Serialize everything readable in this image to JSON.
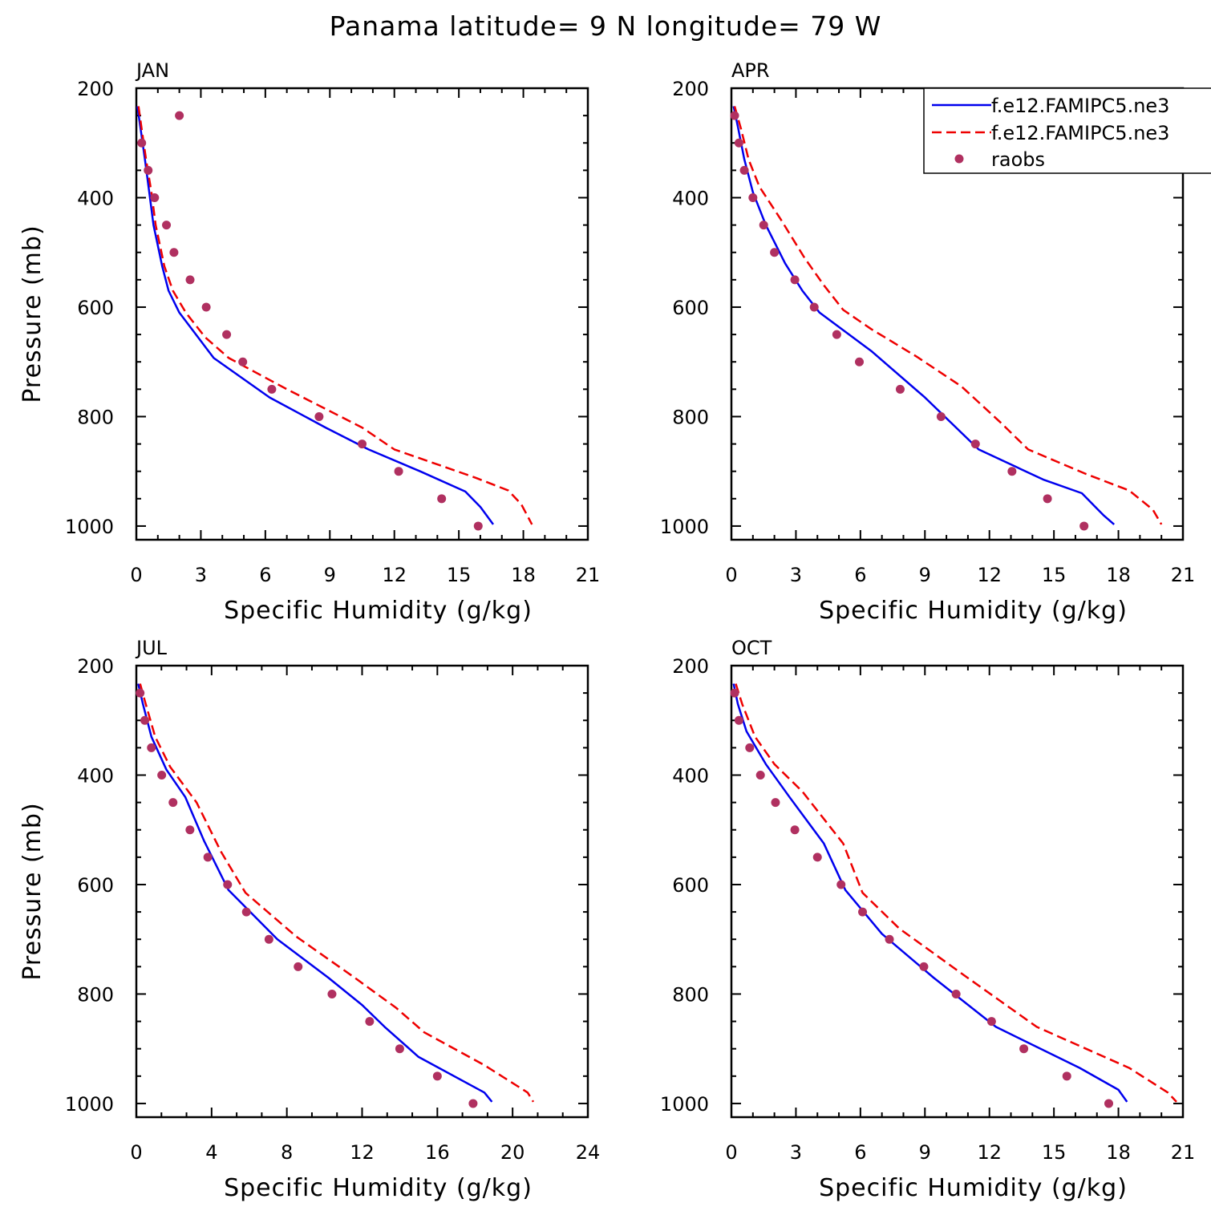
{
  "figure_title": "Panama  latitude= 9 N longitude= 79 W",
  "colors": {
    "model_1": "#0000ee",
    "model_2": "#ee0000",
    "raobs": "#b03060"
  },
  "legend": {
    "placement": "top-right of APR panel",
    "entries": [
      {
        "label": "f.e12.FAMIPC5.ne3",
        "style": "solid",
        "color": "#0000ee"
      },
      {
        "label": "f.e12.FAMIPC5.ne3",
        "style": "dashed",
        "color": "#ee0000"
      },
      {
        "label": "raobs",
        "style": "marker",
        "color": "#b03060"
      }
    ]
  },
  "chart_data": [
    {
      "type": "line",
      "title": "JAN",
      "xlabel": "Specific Humidity (g/kg)",
      "ylabel": "Pressure (mb)",
      "xlim": [
        0,
        21
      ],
      "xticks": [
        0,
        3,
        6,
        9,
        12,
        15,
        18,
        21
      ],
      "ylim": [
        200,
        1025
      ],
      "yticks": [
        200,
        400,
        600,
        800,
        1000
      ],
      "y_reversed": true,
      "series": [
        {
          "name": "f.e12.FAMIPC5.ne3",
          "style": "solid",
          "x": [
            0.05,
            0.2,
            0.4,
            0.6,
            0.8,
            1.2,
            1.5,
            2.0,
            3.6,
            6.2,
            8.8,
            10.8,
            13.2,
            15.3,
            16.0,
            16.6
          ],
          "y": [
            233,
            275,
            330,
            390,
            450,
            525,
            570,
            610,
            693,
            765,
            820,
            860,
            900,
            937,
            965,
            997
          ]
        },
        {
          "name": "f.e12.FAMIPC5.ne3",
          "style": "dashed",
          "x": [
            0.1,
            0.25,
            0.45,
            0.7,
            0.9,
            1.3,
            1.7,
            2.3,
            3.2,
            4.3,
            7.0,
            10.5,
            12.0,
            14.2,
            15.8,
            17.3,
            17.9,
            18.4
          ],
          "y": [
            233,
            275,
            330,
            390,
            450,
            525,
            570,
            610,
            655,
            693,
            750,
            820,
            860,
            890,
            912,
            935,
            960,
            997
          ]
        },
        {
          "name": "raobs",
          "style": "marker",
          "x": [
            2.0,
            0.25,
            0.55,
            0.85,
            1.4,
            1.75,
            2.5,
            3.25,
            4.2,
            4.95,
            6.3,
            8.5,
            10.5,
            12.2,
            14.2,
            15.9
          ],
          "y": [
            250,
            300,
            350,
            400,
            450,
            500,
            550,
            600,
            650,
            700,
            750,
            800,
            850,
            900,
            950,
            1000
          ]
        }
      ]
    },
    {
      "type": "line",
      "title": "APR",
      "xlabel": "Specific Humidity (g/kg)",
      "ylabel": "",
      "xlim": [
        0,
        21
      ],
      "xticks": [
        0,
        3,
        6,
        9,
        12,
        15,
        18,
        21
      ],
      "ylim": [
        200,
        1025
      ],
      "yticks": [
        200,
        400,
        600,
        800,
        1000
      ],
      "y_reversed": true,
      "series": [
        {
          "name": "f.e12.FAMIPC5.ne3",
          "style": "solid",
          "x": [
            0.1,
            0.3,
            0.6,
            1.0,
            1.6,
            2.5,
            3.3,
            4.1,
            6.5,
            9.0,
            11.5,
            14.5,
            16.3,
            17.3,
            17.8
          ],
          "y": [
            233,
            270,
            330,
            390,
            450,
            520,
            570,
            610,
            680,
            765,
            860,
            915,
            940,
            980,
            997
          ]
        },
        {
          "name": "f.e12.FAMIPC5.ne3",
          "style": "dashed",
          "x": [
            0.15,
            0.45,
            0.8,
            1.3,
            2.3,
            3.4,
            4.3,
            5.2,
            6.5,
            8.6,
            10.7,
            12.5,
            13.8,
            16.5,
            18.5,
            19.6,
            20.0
          ],
          "y": [
            233,
            275,
            330,
            380,
            440,
            510,
            560,
            605,
            640,
            690,
            745,
            810,
            860,
            905,
            935,
            970,
            997
          ]
        },
        {
          "name": "raobs",
          "style": "marker",
          "x": [
            0.15,
            0.35,
            0.6,
            1.0,
            1.5,
            2.0,
            2.95,
            3.85,
            4.9,
            5.95,
            7.85,
            9.75,
            11.35,
            13.05,
            14.7,
            16.4
          ],
          "y": [
            250,
            300,
            350,
            400,
            450,
            500,
            550,
            600,
            650,
            700,
            750,
            800,
            850,
            900,
            950,
            1000
          ]
        }
      ]
    },
    {
      "type": "line",
      "title": "JUL",
      "xlabel": "Specific Humidity (g/kg)",
      "ylabel": "Pressure (mb)",
      "xlim": [
        0,
        24
      ],
      "xticks": [
        0,
        4,
        8,
        12,
        16,
        20,
        24
      ],
      "ylim": [
        200,
        1025
      ],
      "yticks": [
        200,
        400,
        600,
        800,
        1000
      ],
      "y_reversed": true,
      "series": [
        {
          "name": "f.e12.FAMIPC5.ne3",
          "style": "solid",
          "x": [
            0.1,
            0.35,
            0.8,
            1.6,
            2.6,
            3.6,
            4.9,
            7.5,
            10.2,
            12.0,
            13.2,
            15.0,
            18.5,
            18.9
          ],
          "y": [
            233,
            270,
            330,
            390,
            440,
            520,
            610,
            700,
            770,
            820,
            860,
            915,
            980,
            997
          ]
        },
        {
          "name": "f.e12.FAMIPC5.ne3",
          "style": "dashed",
          "x": [
            0.2,
            0.5,
            1.0,
            1.8,
            3.2,
            4.5,
            5.8,
            8.5,
            11.6,
            13.8,
            15.3,
            18.5,
            20.8,
            21.1
          ],
          "y": [
            233,
            270,
            330,
            385,
            450,
            540,
            615,
            695,
            770,
            825,
            870,
            930,
            980,
            997
          ]
        },
        {
          "name": "raobs",
          "style": "marker",
          "x": [
            0.2,
            0.45,
            0.8,
            1.35,
            1.95,
            2.85,
            3.8,
            4.85,
            5.85,
            7.05,
            8.6,
            10.4,
            12.4,
            14.0,
            16.0,
            17.9
          ],
          "y": [
            250,
            300,
            350,
            400,
            450,
            500,
            550,
            600,
            650,
            700,
            750,
            800,
            850,
            900,
            950,
            1000
          ]
        }
      ]
    },
    {
      "type": "line",
      "title": "OCT",
      "xlabel": "Specific Humidity (g/kg)",
      "ylabel": "",
      "xlim": [
        0,
        21
      ],
      "xticks": [
        0,
        3,
        6,
        9,
        12,
        15,
        18,
        21
      ],
      "ylim": [
        200,
        1025
      ],
      "yticks": [
        200,
        400,
        600,
        800,
        1000
      ],
      "y_reversed": true,
      "series": [
        {
          "name": "f.e12.FAMIPC5.ne3",
          "style": "solid",
          "x": [
            0.1,
            0.3,
            0.7,
            1.6,
            2.7,
            4.3,
            5.3,
            7.0,
            9.4,
            12.3,
            16.2,
            18.0,
            18.4
          ],
          "y": [
            233,
            270,
            320,
            380,
            440,
            525,
            610,
            690,
            770,
            860,
            935,
            975,
            997
          ]
        },
        {
          "name": "f.e12.FAMIPC5.ne3",
          "style": "dashed",
          "x": [
            0.2,
            0.5,
            1.1,
            2.0,
            3.3,
            5.2,
            6.1,
            7.8,
            10.8,
            14.2,
            18.5,
            20.3,
            20.7
          ],
          "y": [
            233,
            270,
            330,
            380,
            430,
            525,
            615,
            680,
            765,
            860,
            935,
            980,
            997
          ]
        },
        {
          "name": "raobs",
          "style": "marker",
          "x": [
            0.15,
            0.35,
            0.85,
            1.35,
            2.05,
            2.95,
            4.0,
            5.1,
            6.1,
            7.35,
            8.95,
            10.45,
            12.1,
            13.6,
            15.6,
            17.55
          ],
          "y": [
            250,
            300,
            350,
            400,
            450,
            500,
            550,
            600,
            650,
            700,
            750,
            800,
            850,
            900,
            950,
            1000
          ]
        }
      ]
    }
  ]
}
